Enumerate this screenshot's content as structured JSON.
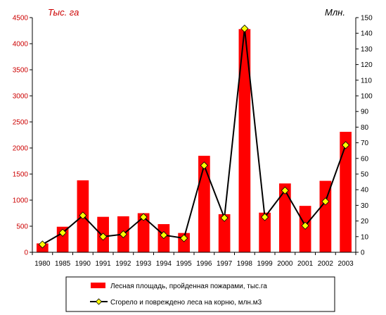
{
  "chart_data": {
    "type": "bar+line",
    "categories": [
      "1980",
      "1985",
      "1990",
      "1991",
      "1992",
      "1993",
      "1994",
      "1995",
      "1996",
      "1997",
      "1998",
      "1999",
      "2000",
      "2001",
      "2002",
      "2003"
    ],
    "left_axis": {
      "unit_label": "Тыс. га",
      "ylim": [
        0,
        4500
      ],
      "ticks": [
        0,
        500,
        1000,
        1500,
        2000,
        2500,
        3000,
        3500,
        4000,
        4500
      ],
      "color": "#cc0000"
    },
    "right_axis": {
      "unit_label": "Млн.",
      "ylim": [
        0,
        150
      ],
      "ticks": [
        0,
        10,
        20,
        30,
        40,
        50,
        60,
        70,
        80,
        90,
        100,
        110,
        120,
        130,
        140,
        150
      ],
      "color": "#000000"
    },
    "series": [
      {
        "name": "Лесная площадь, пройденная пожарами, тыс.га",
        "kind": "bar",
        "axis": "left",
        "color": "#ff0000",
        "values": [
          170,
          490,
          1380,
          680,
          690,
          750,
          540,
          370,
          1850,
          730,
          4280,
          760,
          1320,
          890,
          1370,
          2310
        ]
      },
      {
        "name": "Сгорело и повреждено леса на корню, млн.м3",
        "kind": "line",
        "axis": "right",
        "color": "#000000",
        "marker_color": "#ffff00",
        "values": [
          5,
          12.5,
          23.5,
          10,
          11.5,
          22.5,
          11,
          9,
          55.5,
          22,
          143,
          22.5,
          39.5,
          17,
          32.5,
          68.5
        ]
      }
    ],
    "grid": false,
    "legend_position": "bottom"
  }
}
